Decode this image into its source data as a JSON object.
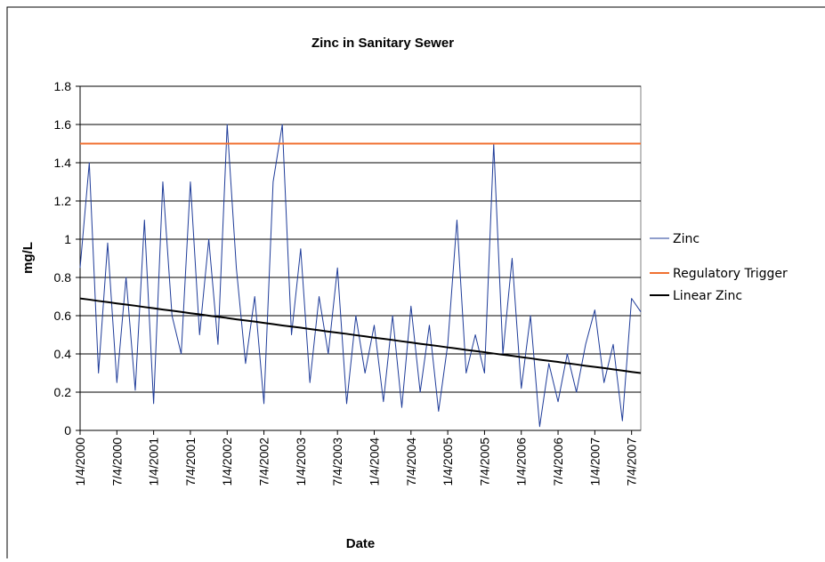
{
  "chart_data": {
    "type": "line",
    "title": "Zinc in Sanitary Sewer",
    "x_label": "Date",
    "y_label": "mg/L",
    "categories": [
      "1/4/2000",
      null,
      null,
      null,
      "7/4/2000",
      null,
      null,
      null,
      "1/4/2001",
      null,
      null,
      null,
      "7/4/2001",
      null,
      null,
      null,
      "1/4/2002",
      null,
      null,
      null,
      "7/4/2002",
      null,
      null,
      null,
      "1/4/2003",
      null,
      null,
      null,
      "7/4/2003",
      null,
      null,
      null,
      "1/4/2004",
      null,
      null,
      null,
      "7/4/2004",
      null,
      null,
      null,
      "1/4/2005",
      null,
      null,
      null,
      "7/4/2005",
      null,
      null,
      null,
      "1/4/2006",
      null,
      null,
      null,
      "7/4/2006",
      null,
      null,
      null,
      "1/4/2007",
      null,
      null,
      null,
      "7/4/2007",
      null
    ],
    "series": [
      {
        "name": "Zinc",
        "color": "#1f3c99",
        "width": 1,
        "values": [
          0.85,
          1.4,
          0.3,
          0.98,
          0.25,
          0.8,
          0.21,
          1.1,
          0.14,
          1.3,
          0.6,
          0.4,
          1.3,
          0.5,
          1.0,
          0.45,
          1.6,
          0.85,
          0.35,
          0.7,
          0.14,
          1.3,
          1.6,
          0.5,
          0.95,
          0.25,
          0.7,
          0.4,
          0.85,
          0.14,
          0.6,
          0.3,
          0.55,
          0.15,
          0.6,
          0.12,
          0.65,
          0.2,
          0.55,
          0.1,
          0.45,
          1.1,
          0.3,
          0.5,
          0.3,
          1.5,
          0.4,
          0.9,
          0.22,
          0.6,
          0.02,
          0.35,
          0.15,
          0.4,
          0.2,
          0.45,
          0.63,
          0.25,
          0.45,
          0.05,
          0.69,
          0.62
        ]
      },
      {
        "name": "Regulatory Trigger",
        "color": "#f07030",
        "width": 2,
        "values": [
          1.5,
          1.5,
          1.5,
          1.5,
          1.5,
          1.5,
          1.5,
          1.5,
          1.5,
          1.5,
          1.5,
          1.5,
          1.5,
          1.5,
          1.5,
          1.5,
          1.5,
          1.5,
          1.5,
          1.5,
          1.5,
          1.5,
          1.5,
          1.5,
          1.5,
          1.5,
          1.5,
          1.5,
          1.5,
          1.5,
          1.5,
          1.5,
          1.5,
          1.5,
          1.5,
          1.5,
          1.5,
          1.5,
          1.5,
          1.5,
          1.5,
          1.5,
          1.5,
          1.5,
          1.5,
          1.5,
          1.5,
          1.5,
          1.5,
          1.5,
          1.5,
          1.5,
          1.5,
          1.5,
          1.5,
          1.5,
          1.5,
          1.5,
          1.5,
          1.5,
          1.5,
          1.5
        ]
      },
      {
        "name": "Linear Zinc",
        "color": "#000000",
        "width": 2,
        "values": [
          0.69,
          0.684,
          0.677,
          0.671,
          0.664,
          0.658,
          0.652,
          0.645,
          0.639,
          0.632,
          0.626,
          0.62,
          0.613,
          0.607,
          0.6,
          0.594,
          0.588,
          0.581,
          0.575,
          0.569,
          0.562,
          0.556,
          0.549,
          0.543,
          0.537,
          0.53,
          0.524,
          0.517,
          0.511,
          0.505,
          0.498,
          0.492,
          0.485,
          0.479,
          0.473,
          0.466,
          0.46,
          0.453,
          0.447,
          0.441,
          0.434,
          0.428,
          0.421,
          0.415,
          0.409,
          0.402,
          0.396,
          0.39,
          0.383,
          0.377,
          0.37,
          0.364,
          0.358,
          0.351,
          0.345,
          0.338,
          0.332,
          0.326,
          0.319,
          0.313,
          0.306,
          0.3
        ]
      }
    ],
    "ylim": [
      0,
      1.8
    ],
    "yticks": [
      0,
      0.2,
      0.4,
      0.6,
      0.8,
      1,
      1.2,
      1.4,
      1.6,
      1.8
    ],
    "grid": true,
    "legend": "right"
  }
}
